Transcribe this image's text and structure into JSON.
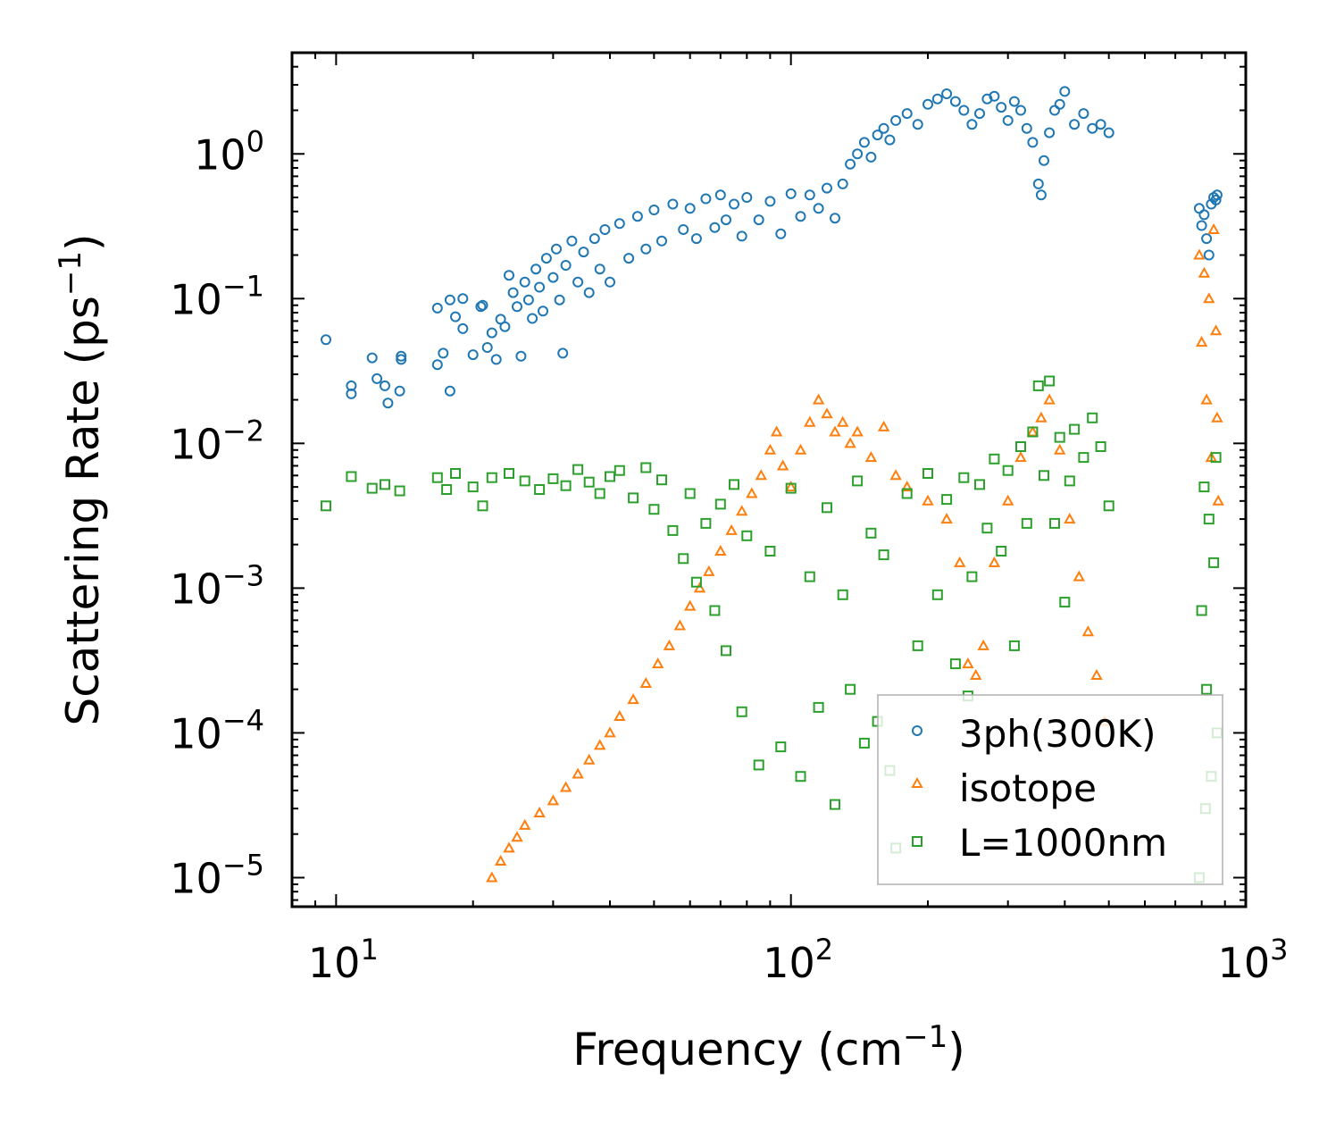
{
  "chart_data": {
    "type": "scatter",
    "title": "",
    "xlabel": "Frequency (cm",
    "xlabel_sup": "−1",
    "xlabel_end": ")",
    "ylabel": "Scattering Rate (ps",
    "ylabel_sup": "−1",
    "ylabel_end": ")",
    "xscale": "log",
    "yscale": "log",
    "xlim": [
      8,
      1000
    ],
    "ylim": [
      6.3e-06,
      5
    ],
    "grid": false,
    "legend_position": "lower-right",
    "x_ticks": [
      {
        "value": 10,
        "base": "10",
        "exp": "1"
      },
      {
        "value": 100,
        "base": "10",
        "exp": "2"
      },
      {
        "value": 1000,
        "base": "10",
        "exp": "3"
      }
    ],
    "y_ticks": [
      {
        "value": 1,
        "base": "10",
        "exp": "0"
      },
      {
        "value": 0.1,
        "base": "10",
        "exp": "−1"
      },
      {
        "value": 0.01,
        "base": "10",
        "exp": "−2"
      },
      {
        "value": 0.001,
        "base": "10",
        "exp": "−3"
      },
      {
        "value": 0.0001,
        "base": "10",
        "exp": "−4"
      },
      {
        "value": 1e-05,
        "base": "10",
        "exp": "−5"
      }
    ],
    "series": [
      {
        "name": "3ph(300K)",
        "marker": "circle",
        "color": "#1f77b4",
        "points": [
          [
            9.5,
            0.052
          ],
          [
            10.8,
            0.025
          ],
          [
            10.8,
            0.022
          ],
          [
            12.0,
            0.039
          ],
          [
            12.3,
            0.028
          ],
          [
            12.8,
            0.025
          ],
          [
            13.0,
            0.019
          ],
          [
            13.8,
            0.023
          ],
          [
            13.9,
            0.04
          ],
          [
            13.9,
            0.038
          ],
          [
            16.7,
            0.086
          ],
          [
            16.7,
            0.035
          ],
          [
            17.2,
            0.042
          ],
          [
            17.8,
            0.098
          ],
          [
            17.8,
            0.023
          ],
          [
            18.3,
            0.075
          ],
          [
            19.0,
            0.1
          ],
          [
            19.0,
            0.062
          ],
          [
            20.0,
            0.041
          ],
          [
            20.8,
            0.088
          ],
          [
            21.0,
            0.09
          ],
          [
            21.5,
            0.046
          ],
          [
            22.0,
            0.058
          ],
          [
            22.5,
            0.038
          ],
          [
            23.0,
            0.072
          ],
          [
            23.5,
            0.064
          ],
          [
            24.0,
            0.145
          ],
          [
            24.5,
            0.11
          ],
          [
            25.0,
            0.088
          ],
          [
            25.5,
            0.04
          ],
          [
            26.0,
            0.13
          ],
          [
            26.5,
            0.098
          ],
          [
            27.0,
            0.073
          ],
          [
            27.5,
            0.16
          ],
          [
            28.0,
            0.12
          ],
          [
            28.5,
            0.082
          ],
          [
            29.0,
            0.19
          ],
          [
            30.0,
            0.14
          ],
          [
            30.5,
            0.22
          ],
          [
            31.0,
            0.098
          ],
          [
            31.5,
            0.042
          ],
          [
            32.0,
            0.17
          ],
          [
            33.0,
            0.25
          ],
          [
            34.0,
            0.13
          ],
          [
            35.0,
            0.21
          ],
          [
            36.0,
            0.11
          ],
          [
            37.0,
            0.26
          ],
          [
            38.0,
            0.16
          ],
          [
            39.0,
            0.3
          ],
          [
            40.0,
            0.13
          ],
          [
            42.0,
            0.33
          ],
          [
            44.0,
            0.19
          ],
          [
            46.0,
            0.37
          ],
          [
            48.0,
            0.22
          ],
          [
            50.0,
            0.41
          ],
          [
            52.0,
            0.25
          ],
          [
            55.0,
            0.45
          ],
          [
            58.0,
            0.3
          ],
          [
            60.0,
            0.42
          ],
          [
            62.0,
            0.26
          ],
          [
            65.0,
            0.49
          ],
          [
            68.0,
            0.31
          ],
          [
            70.0,
            0.52
          ],
          [
            72.0,
            0.35
          ],
          [
            75.0,
            0.45
          ],
          [
            78.0,
            0.27
          ],
          [
            80.0,
            0.5
          ],
          [
            85.0,
            0.35
          ],
          [
            90.0,
            0.47
          ],
          [
            95.0,
            0.28
          ],
          [
            100.0,
            0.53
          ],
          [
            105.0,
            0.37
          ],
          [
            110.0,
            0.52
          ],
          [
            115.0,
            0.42
          ],
          [
            120.0,
            0.58
          ],
          [
            125.0,
            0.36
          ],
          [
            130.0,
            0.62
          ],
          [
            135.0,
            0.85
          ],
          [
            140.0,
            1.0
          ],
          [
            145.0,
            1.2
          ],
          [
            150.0,
            0.95
          ],
          [
            155.0,
            1.35
          ],
          [
            160.0,
            1.5
          ],
          [
            165.0,
            1.25
          ],
          [
            170.0,
            1.7
          ],
          [
            180.0,
            1.9
          ],
          [
            190.0,
            1.6
          ],
          [
            200.0,
            2.2
          ],
          [
            210.0,
            2.4
          ],
          [
            220.0,
            2.6
          ],
          [
            230.0,
            2.3
          ],
          [
            240.0,
            2.0
          ],
          [
            250.0,
            1.6
          ],
          [
            260.0,
            1.9
          ],
          [
            270.0,
            2.4
          ],
          [
            280.0,
            2.5
          ],
          [
            290.0,
            2.1
          ],
          [
            300.0,
            1.7
          ],
          [
            310.0,
            2.3
          ],
          [
            320.0,
            2.0
          ],
          [
            330.0,
            1.5
          ],
          [
            340.0,
            1.2
          ],
          [
            350.0,
            0.62
          ],
          [
            355.0,
            0.52
          ],
          [
            360.0,
            0.9
          ],
          [
            370.0,
            1.4
          ],
          [
            380.0,
            2.0
          ],
          [
            390.0,
            2.2
          ],
          [
            400.0,
            2.7
          ],
          [
            420.0,
            1.6
          ],
          [
            440.0,
            1.9
          ],
          [
            460.0,
            1.5
          ],
          [
            480.0,
            1.6
          ],
          [
            500.0,
            1.4
          ],
          [
            790.0,
            0.42
          ],
          [
            800.0,
            0.32
          ],
          [
            810.0,
            0.38
          ],
          [
            820.0,
            0.26
          ],
          [
            830.0,
            0.2
          ],
          [
            840.0,
            0.45
          ],
          [
            850.0,
            0.5
          ],
          [
            860.0,
            0.48
          ],
          [
            865.0,
            0.52
          ]
        ]
      },
      {
        "name": "isotope",
        "marker": "triangle",
        "color": "#ff7f0e",
        "points": [
          [
            22.0,
            1e-05
          ],
          [
            23.0,
            1.3e-05
          ],
          [
            24.0,
            1.6e-05
          ],
          [
            25.0,
            1.9e-05
          ],
          [
            26.0,
            2.3e-05
          ],
          [
            28.0,
            2.8e-05
          ],
          [
            30.0,
            3.4e-05
          ],
          [
            32.0,
            4.2e-05
          ],
          [
            34.0,
            5.2e-05
          ],
          [
            36.0,
            6.5e-05
          ],
          [
            38.0,
            8.2e-05
          ],
          [
            40.0,
            0.0001
          ],
          [
            42.0,
            0.00013
          ],
          [
            45.0,
            0.00017
          ],
          [
            48.0,
            0.00022
          ],
          [
            51.0,
            0.0003
          ],
          [
            54.0,
            0.0004
          ],
          [
            57.0,
            0.00055
          ],
          [
            60.0,
            0.00075
          ],
          [
            63.0,
            0.001
          ],
          [
            66.0,
            0.0013
          ],
          [
            70.0,
            0.0018
          ],
          [
            74.0,
            0.0025
          ],
          [
            78.0,
            0.0034
          ],
          [
            82.0,
            0.0045
          ],
          [
            86.0,
            0.006
          ],
          [
            90.0,
            0.009
          ],
          [
            93.0,
            0.012
          ],
          [
            96.0,
            0.007
          ],
          [
            100.0,
            0.005
          ],
          [
            105.0,
            0.009
          ],
          [
            110.0,
            0.014
          ],
          [
            115.0,
            0.02
          ],
          [
            120.0,
            0.016
          ],
          [
            125.0,
            0.012
          ],
          [
            130.0,
            0.014
          ],
          [
            135.0,
            0.01
          ],
          [
            140.0,
            0.012
          ],
          [
            150.0,
            0.008
          ],
          [
            160.0,
            0.013
          ],
          [
            170.0,
            0.006
          ],
          [
            180.0,
            0.005
          ],
          [
            200.0,
            0.004
          ],
          [
            220.0,
            0.003
          ],
          [
            235.0,
            0.0015
          ],
          [
            245.0,
            0.0003
          ],
          [
            255.0,
            0.00025
          ],
          [
            265.0,
            0.0004
          ],
          [
            280.0,
            0.0015
          ],
          [
            300.0,
            0.004
          ],
          [
            320.0,
            0.008
          ],
          [
            340.0,
            0.012
          ],
          [
            355.0,
            0.015
          ],
          [
            370.0,
            0.02
          ],
          [
            390.0,
            0.009
          ],
          [
            410.0,
            0.003
          ],
          [
            430.0,
            0.0012
          ],
          [
            450.0,
            0.0005
          ],
          [
            470.0,
            0.00025
          ],
          [
            490.0,
            0.00012
          ],
          [
            790.0,
            0.2
          ],
          [
            800.0,
            0.05
          ],
          [
            810.0,
            0.15
          ],
          [
            820.0,
            0.02
          ],
          [
            830.0,
            0.1
          ],
          [
            840.0,
            0.008
          ],
          [
            850.0,
            0.3
          ],
          [
            860.0,
            0.06
          ],
          [
            865.0,
            0.015
          ],
          [
            870.0,
            0.004
          ]
        ]
      },
      {
        "name": "L=1000nm",
        "marker": "square",
        "color": "#2ca02c",
        "points": [
          [
            9.5,
            0.0037
          ],
          [
            10.8,
            0.0059
          ],
          [
            12.0,
            0.0049
          ],
          [
            12.8,
            0.0052
          ],
          [
            13.8,
            0.0047
          ],
          [
            16.7,
            0.0058
          ],
          [
            17.5,
            0.0048
          ],
          [
            18.3,
            0.0062
          ],
          [
            20.0,
            0.005
          ],
          [
            21.0,
            0.0037
          ],
          [
            22.0,
            0.0058
          ],
          [
            24.0,
            0.0062
          ],
          [
            26.0,
            0.0055
          ],
          [
            28.0,
            0.0048
          ],
          [
            30.0,
            0.0057
          ],
          [
            32.0,
            0.0051
          ],
          [
            34.0,
            0.0066
          ],
          [
            36.0,
            0.0054
          ],
          [
            38.0,
            0.0045
          ],
          [
            40.0,
            0.0059
          ],
          [
            42.0,
            0.0065
          ],
          [
            45.0,
            0.0042
          ],
          [
            48.0,
            0.0068
          ],
          [
            50.0,
            0.0035
          ],
          [
            52.0,
            0.0056
          ],
          [
            55.0,
            0.0025
          ],
          [
            58.0,
            0.0016
          ],
          [
            60.0,
            0.0045
          ],
          [
            62.0,
            0.0011
          ],
          [
            65.0,
            0.0028
          ],
          [
            68.0,
            0.0007
          ],
          [
            70.0,
            0.0038
          ],
          [
            72.0,
            0.00037
          ],
          [
            75.0,
            0.0052
          ],
          [
            78.0,
            0.00014
          ],
          [
            80.0,
            0.0023
          ],
          [
            85.0,
            6e-05
          ],
          [
            90.0,
            0.0018
          ],
          [
            95.0,
            8e-05
          ],
          [
            100.0,
            0.0049
          ],
          [
            105.0,
            5e-05
          ],
          [
            110.0,
            0.0012
          ],
          [
            115.0,
            0.00015
          ],
          [
            120.0,
            0.0036
          ],
          [
            125.0,
            3.2e-05
          ],
          [
            130.0,
            0.0009
          ],
          [
            135.0,
            0.0002
          ],
          [
            140.0,
            0.0055
          ],
          [
            145.0,
            8.5e-05
          ],
          [
            150.0,
            0.0024
          ],
          [
            155.0,
            0.00012
          ],
          [
            160.0,
            0.0017
          ],
          [
            165.0,
            5.5e-05
          ],
          [
            170.0,
            1.6e-05
          ],
          [
            180.0,
            0.0045
          ],
          [
            190.0,
            0.0004
          ],
          [
            200.0,
            0.0062
          ],
          [
            210.0,
            0.0009
          ],
          [
            220.0,
            0.0041
          ],
          [
            230.0,
            0.0003
          ],
          [
            240.0,
            0.0058
          ],
          [
            245.0,
            0.00018
          ],
          [
            250.0,
            0.0012
          ],
          [
            260.0,
            0.0052
          ],
          [
            270.0,
            0.0026
          ],
          [
            280.0,
            0.0078
          ],
          [
            290.0,
            0.0018
          ],
          [
            300.0,
            0.0065
          ],
          [
            310.0,
            0.0004
          ],
          [
            320.0,
            0.0095
          ],
          [
            330.0,
            0.0028
          ],
          [
            340.0,
            0.012
          ],
          [
            350.0,
            0.025
          ],
          [
            360.0,
            0.006
          ],
          [
            370.0,
            0.027
          ],
          [
            380.0,
            0.0028
          ],
          [
            390.0,
            0.011
          ],
          [
            400.0,
            0.0008
          ],
          [
            410.0,
            0.0055
          ],
          [
            420.0,
            0.0125
          ],
          [
            440.0,
            0.008
          ],
          [
            460.0,
            0.015
          ],
          [
            480.0,
            0.0095
          ],
          [
            500.0,
            0.0037
          ],
          [
            790.0,
            1e-05
          ],
          [
            800.0,
            0.0007
          ],
          [
            810.0,
            0.005
          ],
          [
            815.0,
            3e-05
          ],
          [
            820.0,
            0.0002
          ],
          [
            830.0,
            0.003
          ],
          [
            840.0,
            5e-05
          ],
          [
            850.0,
            0.0015
          ],
          [
            860.0,
            0.008
          ],
          [
            865.0,
            0.0001
          ]
        ]
      }
    ]
  }
}
